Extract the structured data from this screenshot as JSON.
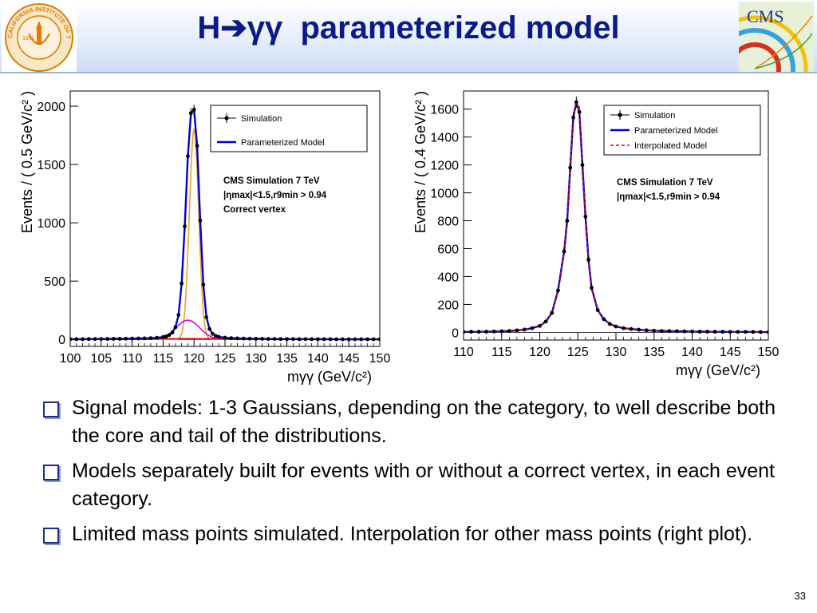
{
  "slide": {
    "title": "H➔γγ  parameterized model",
    "page_number": "33",
    "seal_text": "CALIFORNIA INSTITUTE OF TECHNOLOGY",
    "seal_year": "1891",
    "logo_text": "CMS",
    "bullets": [
      "Signal models:  1-3 Gaussians, depending on the category,  to well describe both the core and tail of the distributions.",
      "Models separately built for events with or without a correct vertex, in each event category.",
      "Limited mass points simulated.  Interpolation for other mass points (right plot)."
    ]
  },
  "chart_data": [
    {
      "type": "scatter",
      "xlabel": "mγγ (GeV/c²)",
      "ylabel": "Events / ( 0.5 GeV/c² )",
      "xlim": [
        100,
        150
      ],
      "ylim": [
        -60,
        2130
      ],
      "xticks": [
        100,
        105,
        110,
        115,
        120,
        125,
        130,
        135,
        140,
        145,
        150
      ],
      "yticks": [
        0,
        500,
        1000,
        1500,
        2000
      ],
      "legend_position": "top-right",
      "legend": [
        {
          "label": "Simulation",
          "marker": "point",
          "color": "#000000"
        },
        {
          "label": "Parameterized Model",
          "marker": "line",
          "color": "#0000dd"
        }
      ],
      "annotations": [
        "CMS Simulation 7 TeV",
        "|ηmax|<1.5,r9min > 0.94",
        "Correct vertex"
      ],
      "components": [
        {
          "color": "#f0a020",
          "mean": 120.0,
          "sigma": 0.75,
          "peak": 1800
        },
        {
          "color": "#dd00dd",
          "mean": 119.0,
          "sigma": 1.9,
          "peak": 165
        },
        {
          "color": "#dd0000",
          "mean": 119.0,
          "sigma": 9.0,
          "peak": 6
        }
      ],
      "series": [
        {
          "name": "Simulation",
          "marker": "point",
          "color": "#000000",
          "x": [
            100,
            101,
            102,
            103,
            104,
            105,
            106,
            107,
            108,
            109,
            110,
            111,
            112,
            113,
            114,
            115,
            115.5,
            116,
            116.5,
            117,
            117.5,
            118,
            118.5,
            119,
            119.5,
            120,
            120.5,
            121,
            121.5,
            122,
            122.5,
            123,
            123.5,
            124,
            125,
            126,
            127,
            128,
            129,
            130,
            131,
            132,
            133,
            134,
            135,
            136,
            137,
            138,
            139,
            140,
            141,
            142,
            143,
            144,
            145,
            146,
            147,
            148,
            149,
            150
          ],
          "y": [
            2,
            2,
            2,
            3,
            3,
            4,
            4,
            5,
            5,
            6,
            7,
            8,
            9,
            11,
            14,
            20,
            26,
            38,
            60,
            105,
            210,
            480,
            970,
            1570,
            1940,
            1970,
            1660,
            1020,
            470,
            190,
            90,
            48,
            30,
            22,
            15,
            11,
            9,
            7,
            6,
            5,
            5,
            4,
            4,
            3,
            3,
            3,
            2,
            2,
            2,
            2,
            2,
            2,
            1,
            1,
            1,
            1,
            1,
            1,
            1,
            1
          ]
        },
        {
          "name": "Parameterized Model",
          "marker": "line",
          "color": "#0000dd"
        }
      ]
    },
    {
      "type": "scatter",
      "xlabel": "mγγ (GeV/c²)",
      "ylabel": "Events / ( 0.4 GeV/c² )",
      "xlim": [
        110,
        150
      ],
      "ylim": [
        -55,
        1730
      ],
      "xticks": [
        110,
        115,
        120,
        125,
        130,
        135,
        140,
        145,
        150
      ],
      "yticks": [
        0,
        200,
        400,
        600,
        800,
        1000,
        1200,
        1400,
        1600
      ],
      "legend_position": "top-right",
      "legend": [
        {
          "label": "Simulation",
          "marker": "point",
          "color": "#000000"
        },
        {
          "label": "Parameterized Model",
          "marker": "line",
          "color": "#0000dd"
        },
        {
          "label": "Interpolated Model",
          "marker": "dashed",
          "color": "#dd0000"
        }
      ],
      "annotations": [
        "CMS Simulation 7 TeV",
        "|ηmax|<1.5,r9min > 0.94"
      ],
      "series": [
        {
          "name": "Simulation",
          "marker": "point",
          "color": "#000000",
          "x": [
            110,
            111,
            112,
            113,
            114,
            115,
            116,
            117,
            118,
            119,
            120,
            120.8,
            121.6,
            122.4,
            123.2,
            123.6,
            124,
            124.4,
            124.8,
            125.2,
            125.6,
            126,
            126.4,
            126.8,
            127.6,
            128.4,
            129.2,
            130,
            131,
            132,
            133,
            134,
            135,
            136,
            137,
            138,
            139,
            140,
            141,
            142,
            143,
            144,
            145,
            146,
            147,
            148,
            149,
            150
          ],
          "y": [
            3,
            4,
            4,
            5,
            6,
            8,
            10,
            14,
            20,
            30,
            46,
            78,
            140,
            300,
            580,
            800,
            1180,
            1540,
            1650,
            1580,
            1200,
            830,
            520,
            320,
            160,
            95,
            60,
            42,
            30,
            24,
            19,
            15,
            12,
            10,
            9,
            8,
            7,
            6,
            5,
            5,
            4,
            4,
            3,
            3,
            3,
            3,
            2,
            2
          ]
        },
        {
          "name": "Parameterized Model",
          "marker": "line",
          "color": "#0000dd"
        },
        {
          "name": "Interpolated Model",
          "marker": "dashed",
          "color": "#dd0000"
        }
      ]
    }
  ]
}
